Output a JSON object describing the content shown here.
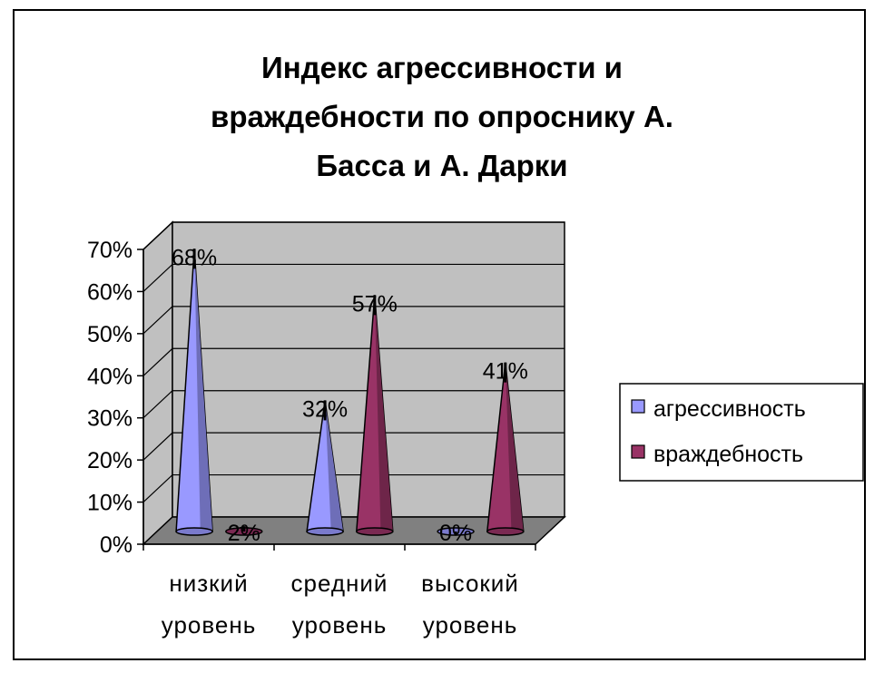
{
  "chart_data": {
    "type": "bar",
    "title_lines": [
      "Индекс агрессивности и",
      "враждебности по опроснику А.",
      "Басса и А. Дарки"
    ],
    "categories": [
      [
        "низкий",
        "уровень"
      ],
      [
        "средний",
        "уровень"
      ],
      [
        "высокий",
        "уровень"
      ]
    ],
    "series": [
      {
        "name": "агрессивность",
        "values": [
          68,
          32,
          0
        ],
        "labels": [
          "68%",
          "32%",
          "0%"
        ],
        "color": "#9999ff"
      },
      {
        "name": "враждебность",
        "values": [
          2,
          57,
          41
        ],
        "labels": [
          "2%",
          "57%",
          "41%"
        ],
        "color": "#993366"
      }
    ],
    "y_ticks": [
      "0%",
      "10%",
      "20%",
      "30%",
      "40%",
      "50%",
      "60%",
      "70%"
    ],
    "ylim": [
      0,
      70
    ],
    "grid": true,
    "legend": "right",
    "wall_color": "#c0c0c0",
    "floor_color": "#808080"
  }
}
